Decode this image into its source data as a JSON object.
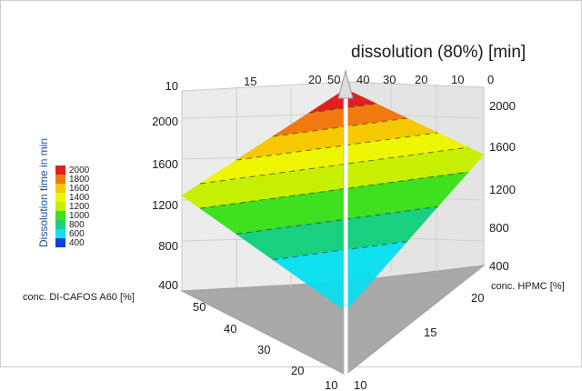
{
  "chart_data": {
    "type": "surface-3d",
    "title": "dissolution (80%) [min]",
    "axes": {
      "x": {
        "label": "conc. DI-CAFOS A60 [%]",
        "range": [
          10,
          50
        ],
        "ticks": [
          "10",
          "20",
          "30",
          "40",
          "50"
        ],
        "top_ticks": [
          "10",
          "15",
          "20",
          "50"
        ]
      },
      "y": {
        "label": "conc. HPMC [%]",
        "range": [
          10,
          20
        ],
        "ticks": [
          "10",
          "15",
          "20"
        ],
        "top_ticks": [
          "40",
          "30",
          "20",
          "10",
          "0"
        ]
      },
      "z": {
        "label": "dissolution (80%) [min]",
        "range": [
          400,
          2000
        ],
        "left_ticks": [
          "400",
          "800",
          "1200",
          "1600",
          "2000",
          "10"
        ],
        "right_ticks": [
          "400",
          "800",
          "1200",
          "1600",
          "2000"
        ]
      }
    },
    "surface": {
      "corners": [
        {
          "di_cafos": 10,
          "hpmc": 10,
          "z": 400
        },
        {
          "di_cafos": 50,
          "hpmc": 10,
          "z": 1300
        },
        {
          "di_cafos": 10,
          "hpmc": 20,
          "z": 1400
        },
        {
          "di_cafos": 50,
          "hpmc": 20,
          "z": 2200
        }
      ]
    },
    "legend": {
      "title": "Dissolution time in min",
      "placement": "left",
      "levels": [
        "2000",
        "1800",
        "1600",
        "1400",
        "1200",
        "1000",
        "800",
        "600",
        "400"
      ],
      "colors": [
        "#e02020",
        "#f07a10",
        "#f5c800",
        "#eef500",
        "#c6f000",
        "#3fe020",
        "#18d080",
        "#10e0f0",
        "#1040e0"
      ]
    },
    "grid": true
  }
}
